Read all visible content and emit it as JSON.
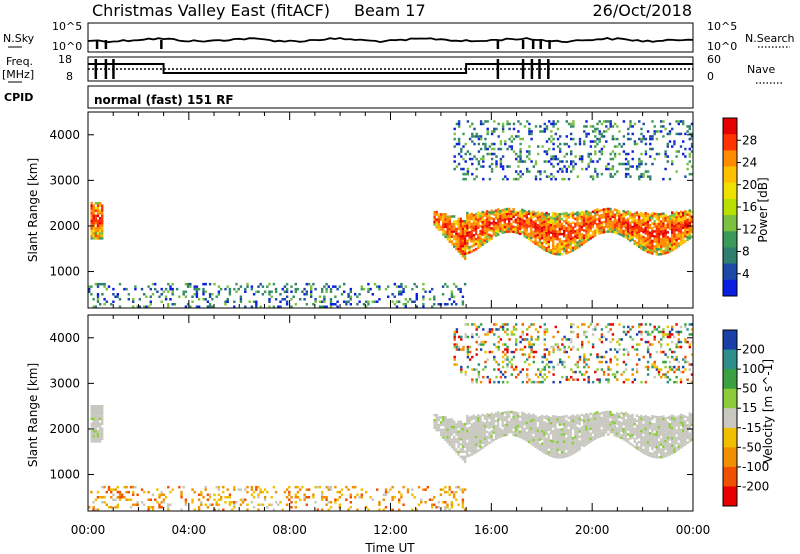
{
  "header": {
    "title": "Christmas Valley East (fitACF)",
    "beam": "Beam 17",
    "date": "26/Oct/2018"
  },
  "top_panels": {
    "nsky_label": "N.Sky",
    "nsky_ticks": [
      "10^5",
      "10^0"
    ],
    "nsearch_label": "N.Search",
    "nsearch_ticks": [
      "10^5",
      "10^0"
    ],
    "freq_label_1": "Freq.",
    "freq_label_2": "[MHz]",
    "freq_ticks": [
      "18",
      "8"
    ],
    "nave_label": "Nave",
    "nave_ticks": [
      "60",
      "0"
    ],
    "cpid_label": "CPID",
    "cpid_text": "normal (fast) 151 RF"
  },
  "chart_data": [
    {
      "type": "heatmap",
      "title": "",
      "ylabel": "Slant Range [km]",
      "xlabel": "",
      "x_range_hours": [
        0,
        24
      ],
      "ylim": [
        200,
        4500
      ],
      "y_ticks": [
        1000,
        2000,
        3000,
        4000
      ],
      "colorbar": {
        "label": "Power [dB]",
        "ticks": [
          "28",
          "24",
          "20",
          "16",
          "12",
          "8",
          "4"
        ],
        "colors": [
          "#e60000",
          "#ff3300",
          "#ff8c00",
          "#ffc000",
          "#f0e000",
          "#b8e000",
          "#7cc040",
          "#3a9a5a",
          "#2e7f6e",
          "#1d4aa8",
          "#0a1fe0"
        ]
      },
      "regions": [
        {
          "t0": 0.1,
          "t1": 0.6,
          "r0": 1700,
          "r1": 2500,
          "level": "high"
        },
        {
          "t0": 13.7,
          "t1": 15.0,
          "r0": 1200,
          "r1": 2300,
          "level": "high"
        },
        {
          "t0": 15.0,
          "t1": 24.0,
          "r0": 1300,
          "r1": 2400,
          "level": "high"
        },
        {
          "t0": 14.5,
          "t1": 24.0,
          "r0": 3000,
          "r1": 4300,
          "level": "low"
        },
        {
          "t0": 0.0,
          "t1": 15.0,
          "r0": 200,
          "r1": 700,
          "level": "low"
        }
      ]
    },
    {
      "type": "heatmap",
      "title": "",
      "ylabel": "Slant Range [km]",
      "xlabel": "Time UT",
      "x_ticks": [
        "00:00",
        "04:00",
        "08:00",
        "12:00",
        "16:00",
        "20:00",
        "00:00"
      ],
      "ylim": [
        200,
        4500
      ],
      "y_ticks": [
        1000,
        2000,
        3000,
        4000
      ],
      "colorbar": {
        "label": "Velocity [m s^-1]",
        "ticks": [
          "200",
          "100",
          "50",
          "15",
          "-15",
          "-50",
          "-100",
          "-200"
        ],
        "colors": [
          "#1a3fa8",
          "#2d8f8a",
          "#3aa040",
          "#8ccc3a",
          "#c8c8c0",
          "#f0c000",
          "#f09000",
          "#f05000",
          "#e80000"
        ]
      },
      "regions": [
        {
          "t0": 0.1,
          "t1": 0.6,
          "r0": 1700,
          "r1": 2500,
          "level": "ground"
        },
        {
          "t0": 13.7,
          "t1": 15.0,
          "r0": 1200,
          "r1": 2300,
          "level": "ground"
        },
        {
          "t0": 15.0,
          "t1": 24.0,
          "r0": 1300,
          "r1": 2400,
          "level": "ground"
        },
        {
          "t0": 14.5,
          "t1": 24.0,
          "r0": 3000,
          "r1": 4300,
          "level": "mixed"
        },
        {
          "t0": 0.0,
          "t1": 15.0,
          "r0": 200,
          "r1": 700,
          "level": "negative"
        }
      ]
    }
  ]
}
